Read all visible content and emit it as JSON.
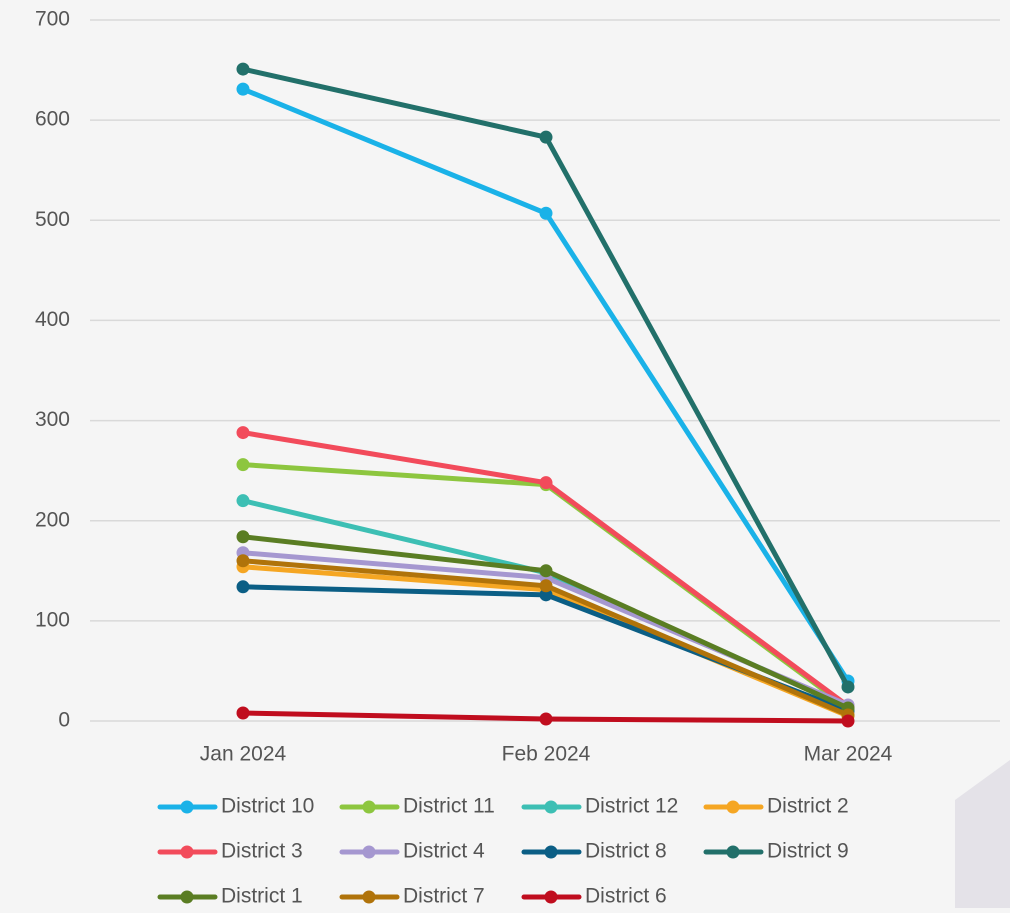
{
  "chart_data": {
    "type": "line",
    "categories": [
      "Jan 2024",
      "Feb 2024",
      "Mar 2024"
    ],
    "series": [
      {
        "name": "District 10",
        "color": "#1ab2e8",
        "values": [
          631,
          507,
          40
        ]
      },
      {
        "name": "District 11",
        "color": "#8dc63f",
        "values": [
          256,
          236,
          13
        ]
      },
      {
        "name": "District 12",
        "color": "#3dbfb4",
        "values": [
          220,
          148,
          14
        ]
      },
      {
        "name": "District 2",
        "color": "#f5a623",
        "values": [
          154,
          131,
          5
        ]
      },
      {
        "name": "District 3",
        "color": "#f24b5b",
        "values": [
          288,
          238,
          15
        ]
      },
      {
        "name": "District 4",
        "color": "#a597d0",
        "values": [
          168,
          143,
          16
        ]
      },
      {
        "name": "District 8",
        "color": "#0b5e85",
        "values": [
          134,
          126,
          10
        ]
      },
      {
        "name": "District 9",
        "color": "#22706a",
        "values": [
          651,
          583,
          34
        ]
      },
      {
        "name": "District 1",
        "color": "#5a7d23",
        "values": [
          184,
          150,
          13
        ]
      },
      {
        "name": "District 7",
        "color": "#b0730a",
        "values": [
          160,
          135,
          6
        ]
      },
      {
        "name": "District 6",
        "color": "#c00d1e",
        "values": [
          8,
          2,
          0
        ]
      }
    ],
    "ylim": [
      0,
      700
    ],
    "yticks": [
      0,
      100,
      200,
      300,
      400,
      500,
      600,
      700
    ],
    "grid": true
  }
}
